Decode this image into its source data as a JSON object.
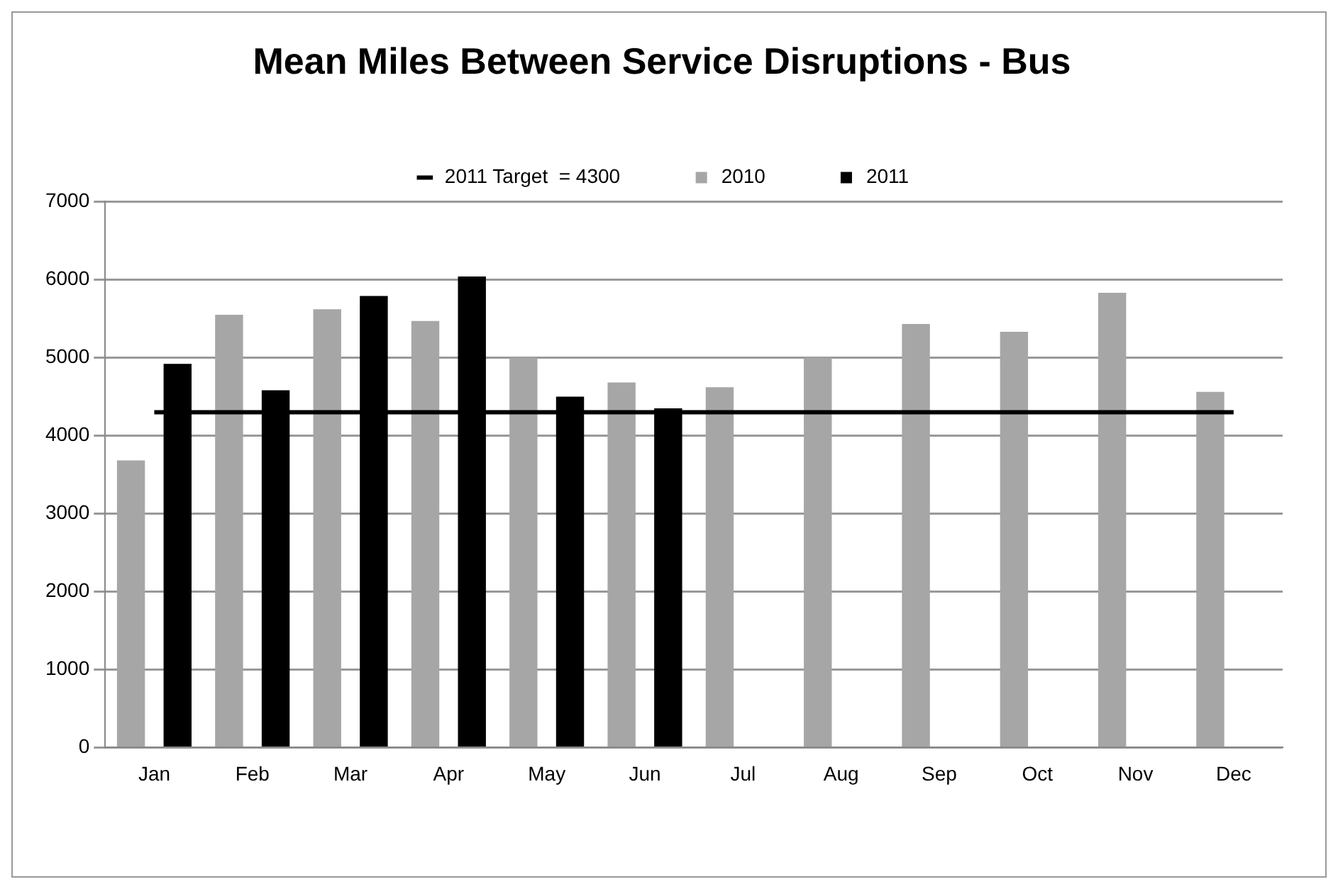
{
  "chart_data": {
    "type": "bar",
    "title": "Mean Miles Between Service Disruptions - Bus",
    "categories": [
      "Jan",
      "Feb",
      "Mar",
      "Apr",
      "May",
      "Jun",
      "Jul",
      "Aug",
      "Sep",
      "Oct",
      "Nov",
      "Dec"
    ],
    "series": [
      {
        "name": "2010",
        "color": "#a6a6a6",
        "values": [
          3680,
          5550,
          5620,
          5470,
          5000,
          4680,
          4620,
          5000,
          5430,
          5330,
          5830,
          4560
        ]
      },
      {
        "name": "2011",
        "color": "#000000",
        "values": [
          4920,
          4580,
          5790,
          6040,
          4500,
          4350,
          null,
          null,
          null,
          null,
          null,
          null
        ]
      },
      {
        "name": "2011 Target  = 4300",
        "type": "line",
        "color": "#000000",
        "values": [
          4300,
          4300,
          4300,
          4300,
          4300,
          4300,
          4300,
          4300,
          4300,
          4300,
          4300,
          4300
        ]
      }
    ],
    "ylim": [
      0,
      7000
    ],
    "yticks": [
      0,
      1000,
      2000,
      3000,
      4000,
      5000,
      6000,
      7000
    ],
    "grid": "y",
    "legend": "top",
    "marker": "none",
    "line_style": "solid"
  }
}
